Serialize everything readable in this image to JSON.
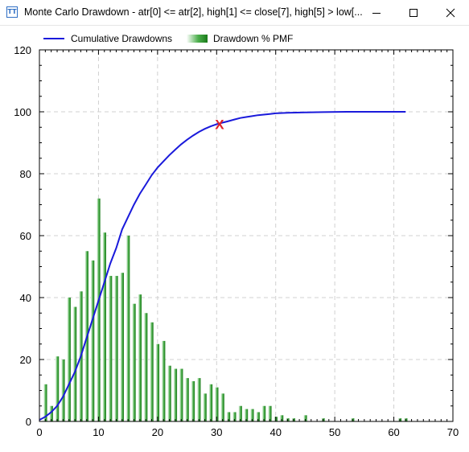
{
  "window": {
    "title": "Monte Carlo Drawdown - atr[0] <= atr[2], high[1] <= close[7], high[5] > low[...",
    "icon_name": "tt-app-icon",
    "icon_text": "TT"
  },
  "chart_data": {
    "type": "bar",
    "legend_position": "top-left",
    "grid": true,
    "xlim": [
      0,
      70
    ],
    "ylim": [
      0,
      120
    ],
    "x_ticks": [
      0,
      10,
      20,
      30,
      40,
      50,
      60,
      70
    ],
    "y_ticks": [
      0,
      20,
      40,
      60,
      80,
      100,
      120
    ],
    "series": [
      {
        "name": "Cumulative Drawdowns",
        "type": "line",
        "color": "#1a1adb",
        "points": [
          [
            0,
            0.5
          ],
          [
            1,
            1.5
          ],
          [
            2,
            3
          ],
          [
            3,
            5
          ],
          [
            4,
            8
          ],
          [
            5,
            12
          ],
          [
            6,
            16
          ],
          [
            7,
            21
          ],
          [
            8,
            27
          ],
          [
            9,
            33
          ],
          [
            10,
            39
          ],
          [
            11,
            45
          ],
          [
            12,
            51
          ],
          [
            13,
            56
          ],
          [
            14,
            62
          ],
          [
            15,
            66
          ],
          [
            16,
            70
          ],
          [
            17,
            73.5
          ],
          [
            18,
            76.5
          ],
          [
            19,
            79.5
          ],
          [
            20,
            82
          ],
          [
            21,
            84
          ],
          [
            22,
            86
          ],
          [
            23,
            87.8
          ],
          [
            24,
            89.5
          ],
          [
            25,
            91
          ],
          [
            26,
            92.3
          ],
          [
            27,
            93.5
          ],
          [
            28,
            94.5
          ],
          [
            29,
            95.3
          ],
          [
            30,
            96
          ],
          [
            31,
            96.5
          ],
          [
            32,
            97
          ],
          [
            33,
            97.5
          ],
          [
            34,
            98
          ],
          [
            35,
            98.3
          ],
          [
            36,
            98.6
          ],
          [
            37,
            98.9
          ],
          [
            38,
            99.1
          ],
          [
            39,
            99.3
          ],
          [
            40,
            99.5
          ],
          [
            42,
            99.7
          ],
          [
            45,
            99.8
          ],
          [
            48,
            99.9
          ],
          [
            52,
            100
          ],
          [
            55,
            100
          ],
          [
            58,
            100
          ],
          [
            62,
            100
          ]
        ]
      },
      {
        "name": "Drawdown % PMF",
        "type": "bar",
        "color": "#1e8c1e",
        "points": [
          [
            1,
            12
          ],
          [
            2,
            5
          ],
          [
            3,
            21
          ],
          [
            4,
            20
          ],
          [
            5,
            40
          ],
          [
            6,
            37
          ],
          [
            7,
            42
          ],
          [
            8,
            55
          ],
          [
            9,
            52
          ],
          [
            10,
            72
          ],
          [
            11,
            61
          ],
          [
            12,
            47
          ],
          [
            13,
            47
          ],
          [
            14,
            48
          ],
          [
            15,
            60
          ],
          [
            16,
            38
          ],
          [
            17,
            41
          ],
          [
            18,
            35
          ],
          [
            19,
            32
          ],
          [
            20,
            25
          ],
          [
            21,
            26
          ],
          [
            22,
            18
          ],
          [
            23,
            17
          ],
          [
            24,
            17
          ],
          [
            25,
            14
          ],
          [
            26,
            13
          ],
          [
            27,
            14
          ],
          [
            28,
            9
          ],
          [
            29,
            12
          ],
          [
            30,
            11
          ],
          [
            31,
            9
          ],
          [
            32,
            3
          ],
          [
            33,
            3
          ],
          [
            34,
            5
          ],
          [
            35,
            4
          ],
          [
            36,
            4
          ],
          [
            37,
            3
          ],
          [
            38,
            5
          ],
          [
            39,
            5
          ],
          [
            40,
            1.5
          ],
          [
            41,
            2
          ],
          [
            42,
            1
          ],
          [
            43,
            1
          ],
          [
            45,
            2
          ],
          [
            48,
            1
          ],
          [
            53,
            1
          ],
          [
            61,
            1
          ],
          [
            62,
            1
          ]
        ]
      }
    ],
    "marker": {
      "label": "X",
      "x": 30.5,
      "y": 96,
      "color": "#e0202a"
    }
  }
}
